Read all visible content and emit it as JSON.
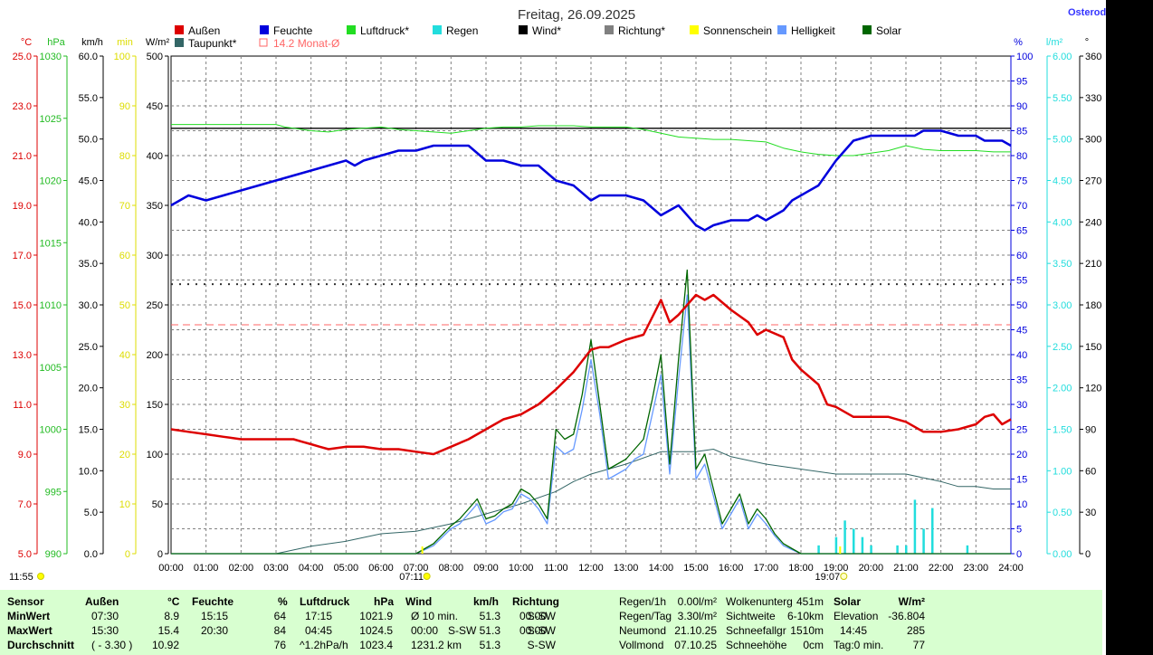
{
  "title": "Freitag, 26.09.2025",
  "location": "Osterode",
  "time_label": "11:55",
  "sunrise": "07:11",
  "sunset": "19:07",
  "legend": [
    {
      "label": "Außen",
      "color": "#dd0000"
    },
    {
      "label": "Taupunkt*",
      "color": "#336666"
    },
    {
      "label": "Feuchte",
      "color": "#0000dd"
    },
    {
      "label": "14.2 Monat-Ø",
      "color": "#ff6666",
      "hollow": true
    },
    {
      "label": "Luftdruck*",
      "color": "#22dd22"
    },
    {
      "label": "Regen",
      "color": "#22dddd"
    },
    {
      "label": "Wind*",
      "color": "#000000"
    },
    {
      "label": "Richtung*",
      "color": "#808080"
    },
    {
      "label": "Sonnenschein",
      "color": "#ffff00"
    },
    {
      "label": "Helligkeit",
      "color": "#6699ff"
    },
    {
      "label": "Solar",
      "color": "#006600"
    }
  ],
  "axes_left": [
    {
      "unit": "°C",
      "color": "#dd0000",
      "ticks": [
        "25.0",
        "23.0",
        "21.0",
        "19.0",
        "17.0",
        "15.0",
        "13.0",
        "11.0",
        "9.0",
        "7.0",
        "5.0"
      ]
    },
    {
      "unit": "hPa",
      "color": "#22bb22",
      "ticks": [
        "1030",
        "1025",
        "1020",
        "1015",
        "1010",
        "1005",
        "1000",
        "995",
        "990"
      ]
    },
    {
      "unit": "km/h",
      "color": "#000000",
      "ticks": [
        "60.0",
        "55.0",
        "50.0",
        "45.0",
        "40.0",
        "35.0",
        "30.0",
        "25.0",
        "20.0",
        "15.0",
        "10.0",
        "5.0",
        "0.0"
      ]
    },
    {
      "unit": "min",
      "color": "#dddd00",
      "ticks": [
        "100",
        "90",
        "80",
        "70",
        "60",
        "50",
        "40",
        "30",
        "20",
        "10",
        "0"
      ]
    },
    {
      "unit": "W/m²",
      "color": "#000000",
      "ticks": [
        "500",
        "450",
        "400",
        "350",
        "300",
        "250",
        "200",
        "150",
        "100",
        "50",
        "0"
      ]
    }
  ],
  "axes_right": [
    {
      "unit": "%",
      "color": "#0000dd",
      "ticks": [
        "100",
        "95",
        "90",
        "85",
        "80",
        "75",
        "70",
        "65",
        "60",
        "55",
        "50",
        "45",
        "40",
        "35",
        "30",
        "25",
        "20",
        "15",
        "10",
        "5",
        "0"
      ]
    },
    {
      "unit": "l/m²",
      "color": "#22dddd",
      "ticks": [
        "6.00",
        "5.50",
        "5.00",
        "4.50",
        "4.00",
        "3.50",
        "3.00",
        "2.50",
        "2.00",
        "1.50",
        "1.00",
        "0.50",
        "0.00"
      ]
    },
    {
      "unit": "°",
      "color": "#000000",
      "ticks": [
        "360",
        "330",
        "300",
        "270",
        "240",
        "210",
        "180",
        "150",
        "120",
        "90",
        "60",
        "30",
        "0"
      ]
    }
  ],
  "x_ticks": [
    "00:00",
    "01:00",
    "02:00",
    "03:00",
    "04:00",
    "05:00",
    "06:00",
    "07:00",
    "08:00",
    "09:00",
    "10:00",
    "11:00",
    "12:00",
    "13:00",
    "14:00",
    "15:00",
    "16:00",
    "17:00",
    "18:00",
    "19:00",
    "20:00",
    "21:00",
    "22:00",
    "23:00",
    "24:00"
  ],
  "chart_data": {
    "type": "line",
    "x_unit": "hours",
    "xlim": [
      0,
      24
    ],
    "series": [
      {
        "name": "Außen",
        "unit": "°C",
        "ylim": [
          5,
          25
        ],
        "color": "#dd0000",
        "x": [
          0,
          0.5,
          1,
          1.5,
          2,
          2.5,
          3,
          3.5,
          3.75,
          4,
          4.25,
          4.5,
          5,
          5.5,
          6,
          6.5,
          7,
          7.5,
          8,
          8.5,
          9,
          9.5,
          10,
          10.5,
          11,
          11.5,
          12,
          12.25,
          12.5,
          13,
          13.5,
          14,
          14.25,
          14.5,
          15,
          15.25,
          15.5,
          16,
          16.5,
          16.75,
          17,
          17.5,
          17.75,
          18,
          18.5,
          18.75,
          19,
          19.5,
          20,
          20.5,
          21,
          21.25,
          21.5,
          22,
          22.5,
          23,
          23.25,
          23.5,
          23.75,
          24
        ],
        "values": [
          10.0,
          9.9,
          9.8,
          9.7,
          9.6,
          9.6,
          9.6,
          9.6,
          9.5,
          9.4,
          9.3,
          9.2,
          9.3,
          9.3,
          9.2,
          9.2,
          9.1,
          9.0,
          9.3,
          9.6,
          10.0,
          10.4,
          10.6,
          11.0,
          11.6,
          12.3,
          13.2,
          13.3,
          13.3,
          13.6,
          13.8,
          15.2,
          14.3,
          14.6,
          15.4,
          15.2,
          15.4,
          14.8,
          14.3,
          13.8,
          14.0,
          13.7,
          12.8,
          12.4,
          11.8,
          11.0,
          10.9,
          10.5,
          10.5,
          10.5,
          10.3,
          10.1,
          9.9,
          9.9,
          10.0,
          10.2,
          10.5,
          10.6,
          10.2,
          10.4
        ]
      },
      {
        "name": "Taupunkt*",
        "unit": "°C",
        "ylim": [
          5,
          25
        ],
        "color": "#336666",
        "x": [
          0,
          1,
          2,
          3,
          4,
          5,
          6,
          7,
          8,
          9,
          10,
          11,
          11.5,
          12,
          13,
          14,
          15,
          15.5,
          16,
          17,
          18,
          19,
          20,
          21,
          22,
          22.5,
          23,
          23.5,
          24
        ],
        "values": [
          5.0,
          5.0,
          5.0,
          5.0,
          5.3,
          5.5,
          5.8,
          5.9,
          6.2,
          6.6,
          7.0,
          7.5,
          7.9,
          8.2,
          8.6,
          9.1,
          9.1,
          9.2,
          8.9,
          8.6,
          8.4,
          8.2,
          8.2,
          8.2,
          7.9,
          7.7,
          7.7,
          7.6,
          7.6
        ]
      },
      {
        "name": "Feuchte",
        "unit": "%",
        "ylim": [
          0,
          100
        ],
        "color": "#0000dd",
        "x": [
          0,
          0.25,
          0.5,
          1,
          1.5,
          2,
          2.5,
          3,
          3.5,
          4,
          4.5,
          5,
          5.25,
          5.5,
          6,
          6.5,
          7,
          7.5,
          8,
          8.5,
          9,
          9.5,
          10,
          10.5,
          11,
          11.5,
          12,
          12.25,
          12.5,
          13,
          13.5,
          14,
          14.25,
          14.5,
          15,
          15.25,
          15.5,
          16,
          16.5,
          16.75,
          17,
          17.5,
          17.75,
          18,
          18.5,
          19,
          19.5,
          20,
          20.5,
          21,
          21.25,
          21.5,
          22,
          22.5,
          23,
          23.25,
          23.5,
          23.75,
          24
        ],
        "values": [
          70,
          71,
          72,
          71,
          72,
          73,
          74,
          75,
          76,
          77,
          78,
          79,
          78,
          79,
          80,
          81,
          81,
          82,
          82,
          82,
          79,
          79,
          78,
          78,
          75,
          74,
          71,
          72,
          72,
          72,
          71,
          68,
          69,
          70,
          66,
          65,
          66,
          67,
          67,
          68,
          67,
          69,
          71,
          72,
          74,
          79,
          83,
          84,
          84,
          84,
          84,
          85,
          85,
          84,
          84,
          83,
          83,
          83,
          82
        ]
      },
      {
        "name": "Luftdruck*",
        "unit": "hPa",
        "ylim": [
          990,
          1030
        ],
        "color": "#22dd22",
        "x": [
          0,
          0.5,
          1,
          2,
          3,
          3.25,
          3.5,
          4,
          4.5,
          5,
          5.5,
          6,
          6.5,
          7,
          7.5,
          8,
          8.5,
          9,
          9.5,
          10,
          10.5,
          11,
          11.5,
          12,
          13,
          13.5,
          14,
          14.5,
          15,
          15.5,
          16,
          16.5,
          17,
          17.5,
          18,
          18.5,
          19,
          19.5,
          20,
          20.5,
          21,
          21.5,
          22,
          22.5,
          23,
          23.5,
          24
        ],
        "values": [
          1024.5,
          1024.5,
          1024.5,
          1024.5,
          1024.5,
          1024.3,
          1024.2,
          1024.0,
          1023.9,
          1024.1,
          1024.2,
          1024.3,
          1024.1,
          1024.0,
          1023.9,
          1023.8,
          1024.0,
          1024.2,
          1024.3,
          1024.3,
          1024.4,
          1024.4,
          1024.4,
          1024.3,
          1024.3,
          1024.1,
          1023.8,
          1023.5,
          1023.4,
          1023.3,
          1023.3,
          1023.2,
          1023.1,
          1022.6,
          1022.3,
          1022.1,
          1022.0,
          1022.0,
          1022.2,
          1022.4,
          1022.8,
          1022.5,
          1022.4,
          1022.4,
          1022.4,
          1022.3,
          1022.3
        ]
      },
      {
        "name": "Wind*",
        "unit": "km/h",
        "ylim": [
          0,
          60
        ],
        "color": "#000000",
        "x": [
          0,
          24
        ],
        "values": [
          51.3,
          51.3
        ]
      },
      {
        "name": "Solar",
        "unit": "W/m²",
        "ylim": [
          0,
          500
        ],
        "color": "#006600",
        "x": [
          0,
          3,
          7,
          7.25,
          7.5,
          8,
          8.25,
          8.5,
          8.75,
          9,
          9.25,
          9.5,
          9.75,
          10,
          10.25,
          10.5,
          10.75,
          11,
          11.25,
          11.5,
          11.75,
          12,
          12.25,
          12.5,
          12.75,
          13,
          13.25,
          13.5,
          13.75,
          14,
          14.25,
          14.5,
          14.75,
          15,
          15.25,
          15.5,
          15.75,
          16,
          16.25,
          16.5,
          16.75,
          17,
          17.25,
          17.5,
          17.75,
          18,
          18.5,
          19,
          24
        ],
        "values": [
          0,
          0,
          0,
          5,
          10,
          28,
          35,
          45,
          55,
          35,
          38,
          45,
          50,
          65,
          60,
          50,
          35,
          125,
          115,
          120,
          160,
          215,
          150,
          85,
          90,
          95,
          105,
          115,
          155,
          200,
          90,
          195,
          285,
          85,
          100,
          65,
          30,
          45,
          60,
          30,
          45,
          35,
          20,
          10,
          5,
          0,
          0,
          0,
          0
        ]
      },
      {
        "name": "Helligkeit",
        "unit": "W/m²",
        "ylim": [
          0,
          500
        ],
        "color": "#6699ff",
        "x": [
          0,
          3,
          7,
          7.25,
          7.5,
          8,
          8.25,
          8.5,
          8.75,
          9,
          9.25,
          9.5,
          9.75,
          10,
          10.25,
          10.5,
          10.75,
          11,
          11.25,
          11.5,
          11.75,
          12,
          12.25,
          12.5,
          12.75,
          13,
          13.25,
          13.5,
          13.75,
          14,
          14.25,
          14.5,
          14.75,
          15,
          15.25,
          15.5,
          15.75,
          16,
          16.25,
          16.5,
          16.75,
          17,
          17.25,
          17.5,
          17.75,
          18,
          18.5,
          19,
          24
        ],
        "values": [
          0,
          0,
          0,
          4,
          8,
          25,
          30,
          40,
          50,
          30,
          34,
          42,
          45,
          60,
          55,
          45,
          30,
          108,
          100,
          105,
          145,
          195,
          140,
          75,
          80,
          85,
          95,
          100,
          140,
          180,
          80,
          175,
          260,
          75,
          90,
          58,
          25,
          40,
          55,
          25,
          40,
          30,
          18,
          8,
          4,
          0,
          0,
          0,
          0
        ]
      }
    ],
    "rain_bars": {
      "unit": "l/m²",
      "ylim": [
        0,
        6
      ],
      "x": [
        18.5,
        19,
        19.25,
        19.5,
        19.75,
        20,
        20.75,
        21,
        21.25,
        21.5,
        21.75,
        22.75
      ],
      "values": [
        0.1,
        0.2,
        0.4,
        0.3,
        0.2,
        0.1,
        0.1,
        0.1,
        0.65,
        0.3,
        0.55,
        0.1
      ]
    },
    "reference_lines": [
      {
        "name": "Monat-Ø",
        "unit": "°C",
        "value": 14.2,
        "style": "dashed",
        "color": "#ff6666"
      },
      {
        "name": "Richtung*",
        "unit": "°",
        "value": 195,
        "style": "dotted",
        "color": "#333333"
      }
    ]
  },
  "table": {
    "headers": [
      "Sensor",
      "Außen",
      "°C",
      "Feuchte",
      "%",
      "Luftdruck",
      "hPa",
      "Wind",
      "km/h",
      "Richtung"
    ],
    "rows": [
      {
        "label": "MinWert",
        "aussen_time": "07:30",
        "aussen_val": "8.9",
        "feuchte_time": "15:15",
        "feuchte_val": "64",
        "druck_time": "17:15",
        "druck_val": "1021.9",
        "wind_time": "Ø 10 min.",
        "wind_val": "51.3",
        "richtung_time": "00:00",
        "richtung_val": "S-SW"
      },
      {
        "label": "MaxWert",
        "aussen_time": "15:30",
        "aussen_val": "15.4",
        "feuchte_time": "20:30",
        "feuchte_val": "84",
        "druck_time": "04:45",
        "druck_val": "1024.5",
        "wind_time": "00:00",
        "wind_val": "S-SW 51.3",
        "richtung_time": "00:00",
        "richtung_val": "S-SW"
      },
      {
        "label": "Durchschnitt",
        "aussen_time": "( - 3.30 )",
        "aussen_val": "10.92",
        "feuchte_time": "",
        "feuchte_val": "76",
        "druck_time": "^1.2hPa/h",
        "druck_val": "1023.4",
        "wind_time": "1231.2 km",
        "wind_val": "51.3",
        "richtung_time": "",
        "richtung_val": "S-SW"
      }
    ],
    "extra": [
      {
        "l1": "Regen/1h",
        "v1": "0.00l/m²",
        "l2": "Wolkenunterg",
        "v2": "451m"
      },
      {
        "l1": "Regen/Tag",
        "v1": "3.30l/m²",
        "l2": "Sichtweite",
        "v2": "6-10km"
      },
      {
        "l1": "Neumond",
        "v1": "21.10.25",
        "l2": "Schneefallgr",
        "v2": "1510m"
      },
      {
        "l1": "Vollmond",
        "v1": "07.10.25",
        "l2": "Schneehöhe",
        "v2": "0cm"
      }
    ],
    "solar": {
      "header": "Solar",
      "unit": "W/m²",
      "rows": [
        {
          "label": "Elevation",
          "value": "-36.804"
        },
        {
          "label": "14:45",
          "value": "285"
        },
        {
          "label": "Tag:0 min.",
          "value": "77"
        }
      ]
    }
  }
}
